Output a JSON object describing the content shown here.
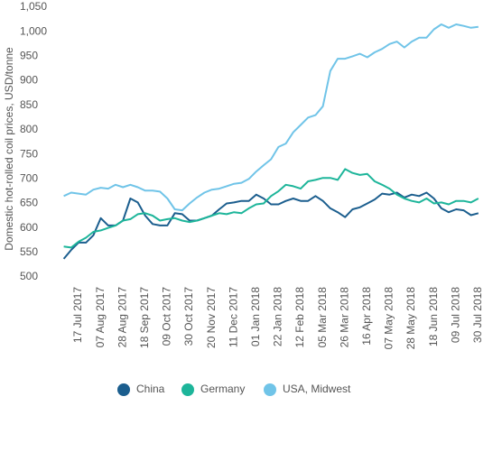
{
  "chart_data": {
    "type": "line",
    "y_label": "Domestic hot-rolled coil prices, USD/tonne",
    "categories": [
      null,
      null,
      "17 Jul 2017",
      null,
      null,
      "07 Aug 2017",
      null,
      null,
      "28 Aug 2017",
      null,
      null,
      "18 Sep 2017",
      null,
      null,
      "09 Oct 2017",
      null,
      null,
      "30 Oct 2017",
      null,
      null,
      "20 Nov 2017",
      null,
      null,
      "11 Dec 2017",
      null,
      null,
      "01 Jan 2018",
      null,
      null,
      "22 Jan 2018",
      null,
      null,
      "12 Feb 2018",
      null,
      null,
      "05 Mar 2018",
      null,
      null,
      "26 Mar 2018",
      null,
      null,
      "16 Apr 2018",
      null,
      null,
      "07 May 2018",
      null,
      null,
      "28 May 2018",
      null,
      null,
      "18 Jun 2018",
      null,
      null,
      "09 Jul 2018",
      null,
      null,
      "30 Jul 2018"
    ],
    "series": [
      {
        "name": "China",
        "color": "#1b5e8e",
        "values": [
          537,
          555,
          570,
          570,
          585,
          620,
          605,
          605,
          615,
          660,
          652,
          625,
          608,
          605,
          605,
          630,
          628,
          615,
          615,
          620,
          625,
          638,
          650,
          652,
          655,
          655,
          668,
          660,
          648,
          648,
          655,
          660,
          655,
          655,
          665,
          655,
          640,
          632,
          622,
          638,
          642,
          650,
          658,
          670,
          668,
          672,
          662,
          668,
          665,
          672,
          660,
          640,
          632,
          638,
          636,
          626,
          630
        ]
      },
      {
        "name": "Germany",
        "color": "#1db59a",
        "values": [
          562,
          560,
          572,
          580,
          592,
          595,
          600,
          605,
          615,
          618,
          628,
          630,
          625,
          615,
          618,
          620,
          615,
          612,
          615,
          620,
          625,
          630,
          628,
          632,
          630,
          640,
          648,
          650,
          665,
          675,
          688,
          685,
          680,
          695,
          698,
          702,
          702,
          698,
          720,
          712,
          708,
          710,
          695,
          688,
          680,
          668,
          660,
          655,
          652,
          660,
          650,
          652,
          648,
          655,
          655,
          652,
          660
        ]
      },
      {
        "name": "USA, Midwest",
        "color": "#70c4e8",
        "values": [
          665,
          672,
          670,
          668,
          678,
          682,
          680,
          688,
          683,
          688,
          683,
          676,
          676,
          674,
          660,
          638,
          636,
          650,
          662,
          672,
          678,
          680,
          685,
          690,
          692,
          700,
          715,
          728,
          740,
          765,
          772,
          795,
          810,
          825,
          830,
          848,
          920,
          945,
          945,
          950,
          955,
          948,
          958,
          965,
          975,
          980,
          968,
          980,
          988,
          988,
          1005,
          1015,
          1008,
          1015,
          1012,
          1008,
          1010
        ]
      }
    ],
    "ylim": [
      500,
      1050
    ],
    "yticks": [
      500,
      550,
      600,
      650,
      700,
      750,
      800,
      850,
      900,
      950,
      {
        "value": 1000,
        "label": "1,000"
      },
      {
        "value": 1050,
        "label": "1,050"
      }
    ],
    "grid": false
  }
}
